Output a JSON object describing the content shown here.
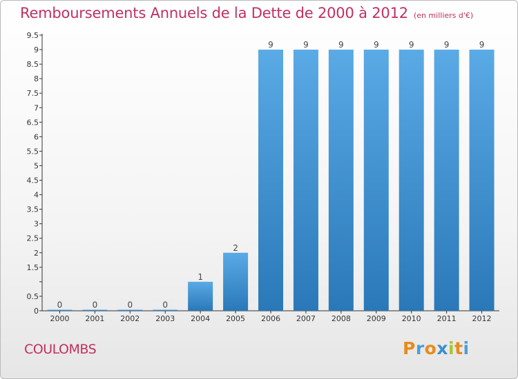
{
  "header": {
    "title": "Remboursements Annuels de la Dette de 2000 à 2012",
    "unit": "(en milliers d'€)"
  },
  "footer": {
    "commune": "COULOMBS",
    "logo_letters": [
      "P",
      "r",
      "o",
      "x",
      "i",
      "t",
      "i"
    ],
    "logo_colors": [
      "#e98b1c",
      "#4a9fd9",
      "#e98b1c",
      "#3b8fcf",
      "#a5c636",
      "#e98b1c",
      "#4a9fd9"
    ]
  },
  "chart_data": {
    "type": "bar",
    "title": "Remboursements Annuels de la Dette de 2000 à 2012",
    "subtitle": "(en milliers d'€)",
    "categories": [
      "2000",
      "2001",
      "2002",
      "2003",
      "2004",
      "2005",
      "2006",
      "2007",
      "2008",
      "2009",
      "2010",
      "2011",
      "2012"
    ],
    "values": [
      0,
      0,
      0,
      0,
      1,
      2,
      9,
      9,
      9,
      9,
      9,
      9,
      9
    ],
    "data_labels": [
      "0",
      "0",
      "0",
      "0",
      "1",
      "2",
      "9",
      "9",
      "9",
      "9",
      "9",
      "9",
      "9"
    ],
    "y_ticks": [
      0,
      0.5,
      1,
      1.5,
      2,
      2.5,
      3,
      3.5,
      4,
      4.5,
      5,
      5.5,
      6,
      6.5,
      7,
      7.5,
      8,
      8.5,
      9,
      9.5
    ],
    "y_tick_labels": [
      "0",
      "0.5",
      "",
      "1.5",
      "2",
      "2.5",
      "3",
      "3.5",
      "4",
      "4.5",
      "5",
      "5.5",
      "6",
      "6.5",
      "7",
      "7.5",
      "8",
      "8.5",
      "9",
      "9.5"
    ],
    "ylim": [
      0,
      9.5
    ],
    "xlabel": "",
    "ylabel": "",
    "grid": false,
    "legend": "none",
    "bar_color": "#3d95d8"
  }
}
